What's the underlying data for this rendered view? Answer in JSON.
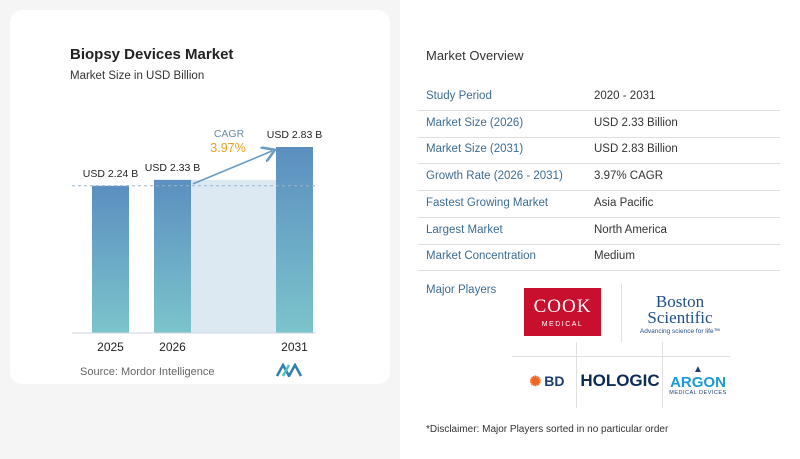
{
  "chart": {
    "title": "Biopsy Devices Market",
    "subtitle": "Market Size in USD Billion",
    "source": "Source:  Mordor Intelligence",
    "cagr_label": "CAGR",
    "cagr_value": "3.97%"
  },
  "chart_data": {
    "type": "bar",
    "categories": [
      "2025",
      "2026",
      "2031"
    ],
    "values": [
      2.24,
      2.33,
      2.83
    ],
    "data_labels": [
      "USD 2.24 B",
      "USD 2.33 B",
      "USD 2.83 B"
    ],
    "title": "Biopsy Devices Market",
    "subtitle": "Market Size in USD Billion",
    "ylabel": "",
    "xlabel": "",
    "grid": false,
    "colors": {
      "bar_top": "#5b8fc0",
      "bar_bottom": "#7cc4cc",
      "arrow": "#6b9bc0",
      "shade": "#dce8f2"
    }
  },
  "overview": {
    "title": "Market Overview",
    "rows": [
      {
        "key": "Study Period",
        "value": "2020 - 2031"
      },
      {
        "key": "Market Size (2026)",
        "value": "USD 2.33 Billion"
      },
      {
        "key": "Market Size (2031)",
        "value": "USD 2.83 Billion"
      },
      {
        "key": "Growth Rate (2026 - 2031)",
        "value": "3.97% CAGR"
      },
      {
        "key": "Fastest Growing Market",
        "value": "Asia Pacific"
      },
      {
        "key": "Largest Market",
        "value": "North America"
      },
      {
        "key": "Market Concentration",
        "value": "Medium"
      }
    ],
    "major_players_label": "Major Players",
    "disclaimer": "*Disclaimer: Major Players sorted in no particular order"
  },
  "logos": {
    "cook": {
      "line1": "COOK",
      "line2": "MEDICAL"
    },
    "boston": {
      "line1": "Boston",
      "line2": "Scientific",
      "tagline": "Advancing science for life™"
    },
    "bd": "BD",
    "hologic": "HOLOGIC",
    "argon": {
      "line1": "ARGON",
      "line2": "MEDICAL DEVICES"
    }
  }
}
